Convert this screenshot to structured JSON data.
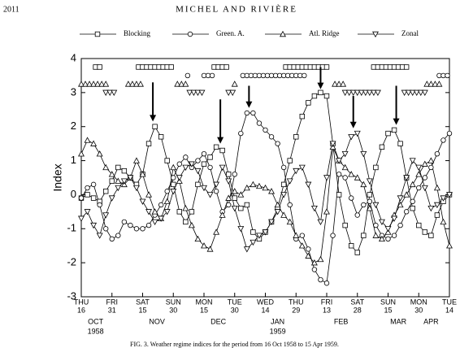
{
  "page": {
    "page_number": "2011",
    "running_head": "MICHEL AND RIVIÈRE",
    "caption": "FIG. 3. Weather regime indices for the period from 16 Oct 1958 to 15 Apr 1959."
  },
  "chart_data": {
    "type": "line",
    "ylabel": "Index",
    "x": [
      0,
      3,
      6,
      9,
      12,
      15,
      18,
      21,
      24,
      27,
      30,
      33,
      36,
      39,
      42,
      45,
      48,
      51,
      54,
      57,
      60,
      63,
      66,
      69,
      72,
      75,
      78,
      81,
      84,
      87,
      90,
      93,
      96,
      99,
      102,
      105,
      108,
      111,
      114,
      117,
      120,
      123,
      126,
      129,
      132,
      135,
      138,
      141,
      144,
      147,
      150,
      153,
      156,
      159,
      162,
      165,
      168,
      171,
      174,
      177,
      180
    ],
    "xlim": [
      0,
      180
    ],
    "xticks": [
      {
        "value": 0,
        "label": "THU"
      },
      {
        "value": 15,
        "label": "FRI"
      },
      {
        "value": 30,
        "label": "SAT"
      },
      {
        "value": 45,
        "label": "SUN"
      },
      {
        "value": 60,
        "label": "MON"
      },
      {
        "value": 75,
        "label": "TUE"
      },
      {
        "value": 90,
        "label": "WED"
      },
      {
        "value": 105,
        "label": "THU"
      },
      {
        "value": 120,
        "label": "FRI"
      },
      {
        "value": 135,
        "label": "SAT"
      },
      {
        "value": 150,
        "label": "SUN"
      },
      {
        "value": 165,
        "label": "MON"
      },
      {
        "value": 180,
        "label": "TUE"
      }
    ],
    "xtick_dates": [
      "16",
      "31",
      "15",
      "30",
      "15",
      "30",
      "14",
      "29",
      "13",
      "28",
      "15",
      "30",
      "14"
    ],
    "month_labels": [
      {
        "value": 7,
        "label": "OCT"
      },
      {
        "value": 37,
        "label": "NOV"
      },
      {
        "value": 67,
        "label": "DEC"
      },
      {
        "value": 96,
        "label": "JAN"
      },
      {
        "value": 127,
        "label": "FEB"
      },
      {
        "value": 155,
        "label": "MAR"
      },
      {
        "value": 171,
        "label": "APR"
      }
    ],
    "year_labels": [
      {
        "value": 7,
        "label": "1958"
      },
      {
        "value": 96,
        "label": "1959"
      }
    ],
    "ylim": [
      -3,
      4
    ],
    "yticks": [
      -3,
      -2,
      -1,
      0,
      1,
      2,
      3,
      4
    ],
    "arrows": [
      {
        "x": 35,
        "y_from": 3.3,
        "y_to": 2.15
      },
      {
        "x": 68,
        "y_from": 2.8,
        "y_to": 1.5
      },
      {
        "x": 82,
        "y_from": 3.2,
        "y_to": 2.55
      },
      {
        "x": 117,
        "y_from": 3.75,
        "y_to": 3.1
      },
      {
        "x": 133,
        "y_from": 2.9,
        "y_to": 1.95
      },
      {
        "x": 154,
        "y_from": 3.2,
        "y_to": 2.05
      }
    ],
    "series": [
      {
        "name": "Blocking",
        "marker": "square",
        "color": "#000000",
        "regime_level": 3.75,
        "regime_days": [
          [
            7,
            10
          ],
          [
            28,
            45
          ],
          [
            65,
            71
          ],
          [
            100,
            121
          ],
          [
            143,
            159
          ]
        ],
        "values": [
          -0.1,
          0.0,
          -0.1,
          -0.2,
          0.1,
          0.4,
          0.8,
          0.7,
          0.5,
          0.3,
          0.6,
          1.5,
          2.0,
          1.7,
          1.0,
          0.3,
          -0.5,
          -0.8,
          -0.5,
          0.3,
          0.9,
          1.1,
          1.4,
          1.3,
          0.6,
          -0.1,
          -0.4,
          -0.3,
          -1.1,
          -1.3,
          -1.1,
          -0.8,
          -0.4,
          0.3,
          1.0,
          1.7,
          2.3,
          2.7,
          2.9,
          3.0,
          2.9,
          1.5,
          0.0,
          -0.9,
          -1.5,
          -1.7,
          -1.2,
          0.0,
          0.8,
          1.4,
          1.8,
          1.9,
          1.5,
          0.5,
          -0.4,
          -0.9,
          -1.1,
          -1.2,
          -0.6,
          -0.2,
          0.0
        ]
      },
      {
        "name": "Green. A.",
        "marker": "circle",
        "color": "#000000",
        "regime_level": 3.5,
        "regime_days": [
          [
            52,
            52
          ],
          [
            60,
            64
          ],
          [
            79,
            109
          ],
          [
            175,
            180
          ]
        ],
        "values": [
          -0.1,
          0.2,
          0.3,
          -0.3,
          -1.0,
          -1.3,
          -1.2,
          -0.8,
          -0.9,
          -1.0,
          -1.0,
          -0.9,
          -0.6,
          -0.3,
          0.1,
          0.5,
          0.9,
          1.1,
          0.8,
          1.0,
          1.2,
          0.8,
          0.1,
          -0.5,
          -0.3,
          0.6,
          1.8,
          2.4,
          2.4,
          2.1,
          1.9,
          1.7,
          1.5,
          0.8,
          -0.3,
          -1.3,
          -1.2,
          -1.6,
          -2.2,
          -2.5,
          -2.6,
          -1.2,
          0.6,
          0.5,
          -0.1,
          -0.6,
          -0.3,
          -0.2,
          -0.9,
          -1.2,
          -1.3,
          -1.2,
          -0.9,
          -0.5,
          -0.2,
          0.2,
          0.5,
          0.8,
          1.2,
          1.6,
          1.8
        ]
      },
      {
        "name": "Atl. Ridge",
        "marker": "triangle",
        "color": "#000000",
        "regime_level": 3.25,
        "regime_days": [
          [
            0,
            12
          ],
          [
            23,
            29
          ],
          [
            47,
            52
          ],
          [
            75,
            75
          ],
          [
            124,
            128
          ],
          [
            169,
            175
          ]
        ],
        "values": [
          1.2,
          1.6,
          1.5,
          1.2,
          0.8,
          0.6,
          0.4,
          0.3,
          0.5,
          1.0,
          0.6,
          0.0,
          -0.5,
          -0.7,
          -0.2,
          0.8,
          0.4,
          -0.4,
          -0.9,
          -1.3,
          -1.5,
          -1.6,
          -1.1,
          -0.6,
          -0.1,
          0.1,
          0.0,
          0.2,
          0.3,
          0.25,
          0.2,
          0.1,
          -0.3,
          -0.6,
          -0.8,
          -1.2,
          -1.5,
          -1.8,
          -2.0,
          -1.9,
          -0.5,
          1.4,
          1.0,
          0.8,
          0.6,
          0.5,
          0.3,
          -0.4,
          -1.2,
          -1.3,
          -1.1,
          -0.6,
          -0.3,
          0.0,
          0.3,
          0.6,
          0.9,
          1.0,
          0.2,
          -0.8,
          -1.5
        ]
      },
      {
        "name": "Zonal",
        "marker": "inv-triangle",
        "color": "#000000",
        "regime_level": 3.0,
        "regime_days": [
          [
            12,
            17
          ],
          [
            53,
            59
          ],
          [
            72,
            75
          ],
          [
            129,
            145
          ],
          [
            158,
            169
          ]
        ],
        "values": [
          -0.7,
          -0.5,
          -0.9,
          -1.2,
          -0.6,
          -0.1,
          0.2,
          0.4,
          0.5,
          0.2,
          -0.2,
          -0.5,
          -0.8,
          -0.7,
          -0.5,
          0.1,
          0.5,
          0.8,
          0.9,
          0.7,
          0.2,
          0.0,
          0.3,
          0.8,
          0.4,
          -0.4,
          -1.0,
          -1.6,
          -1.4,
          -1.2,
          -1.1,
          -0.8,
          -0.5,
          0.0,
          0.4,
          0.7,
          0.8,
          0.3,
          -0.4,
          -0.8,
          0.5,
          1.5,
          1.0,
          1.2,
          1.7,
          1.8,
          1.2,
          0.4,
          -0.3,
          -0.8,
          -1.0,
          -0.7,
          -0.1,
          0.5,
          1.0,
          0.8,
          0.2,
          -0.4,
          -0.3,
          -0.1,
          0.0
        ]
      }
    ]
  }
}
